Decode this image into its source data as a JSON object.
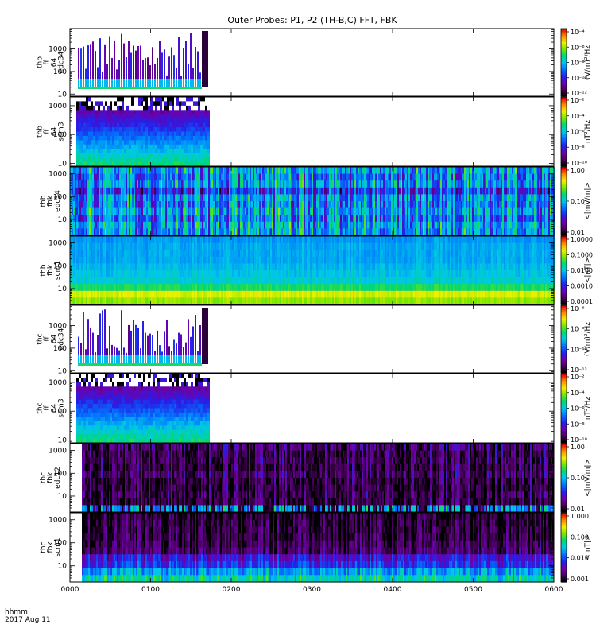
{
  "title": "Outer Probes: P1, P2 (TH-B,C) FFT, FBK",
  "footer": {
    "line1": "hhmm",
    "line2": "2017 Aug 11"
  },
  "x_ticks": [
    "0000",
    "0100",
    "0200",
    "0300",
    "0400",
    "0500",
    "0600"
  ],
  "chart_data": [
    {
      "type": "heatmap",
      "panel": "thb ff 64 edc34",
      "ylabel": [
        "thb",
        "ff",
        "64",
        "edc34"
      ],
      "yscale": "log",
      "ylim": [
        8,
        8000
      ],
      "yticks": [
        "10",
        "100",
        "1000"
      ],
      "data_end_hhmm": "0145",
      "colorbar": {
        "label": "(V/m)²/Hz",
        "scale": "log",
        "ticks": [
          "10⁻⁴",
          "10⁻⁶",
          "10⁻⁸",
          "10⁻¹⁰",
          "10⁻¹²"
        ]
      }
    },
    {
      "type": "heatmap",
      "panel": "thb ff 64 scm3",
      "ylabel": [
        "thb",
        "ff",
        "64",
        "scm3"
      ],
      "yscale": "log",
      "ylim": [
        8,
        2000
      ],
      "yticks": [
        "10",
        "100",
        "1000"
      ],
      "data_end_hhmm": "0145",
      "colorbar": {
        "label": "nT²/Hz",
        "scale": "log",
        "ticks": [
          "10⁻²",
          "10⁻⁴",
          "10⁻⁶",
          "10⁻⁸",
          "10⁻¹⁰"
        ]
      }
    },
    {
      "type": "heatmap",
      "panel": "thb fbk edc34",
      "ylabel": [
        "thb",
        "fbk",
        "edc34"
      ],
      "yscale": "log",
      "ylim": [
        2,
        2000
      ],
      "yticks": [
        "10",
        "100",
        "1000"
      ],
      "colorbar": {
        "label": "<|mV/m|>",
        "scale": "log",
        "ticks": [
          "1.00",
          "0.10",
          "0.01"
        ]
      }
    },
    {
      "type": "heatmap",
      "panel": "thb fbk scm1",
      "ylabel": [
        "thb",
        "fbk",
        "scm1"
      ],
      "yscale": "log",
      "ylim": [
        2,
        2000
      ],
      "yticks": [
        "10",
        "100",
        "1000"
      ],
      "colorbar": {
        "label": "<|nT|>",
        "scale": "log",
        "ticks": [
          "1.0000",
          "0.1000",
          "0.0100",
          "0.0010",
          "0.0001"
        ]
      }
    },
    {
      "type": "heatmap",
      "panel": "thc ff 64 edc34",
      "ylabel": [
        "thc",
        "ff",
        "64",
        "edc34"
      ],
      "yscale": "log",
      "ylim": [
        8,
        8000
      ],
      "yticks": [
        "10",
        "100",
        "1000"
      ],
      "data_end_hhmm": "0145",
      "colorbar": {
        "label": "(V/m)²/Hz",
        "scale": "log",
        "ticks": [
          "10⁻⁶",
          "10⁻⁸",
          "10⁻¹⁰",
          "10⁻¹²"
        ]
      }
    },
    {
      "type": "heatmap",
      "panel": "thc ff 64 scm3",
      "ylabel": [
        "thc",
        "ff",
        "64",
        "scm3"
      ],
      "yscale": "log",
      "ylim": [
        8,
        2000
      ],
      "yticks": [
        "10",
        "100",
        "1000"
      ],
      "data_end_hhmm": "0145",
      "colorbar": {
        "label": "nT²/Hz",
        "scale": "log",
        "ticks": [
          "10⁻²",
          "10⁻⁴",
          "10⁻⁶",
          "10⁻⁸",
          "10⁻¹⁰"
        ]
      }
    },
    {
      "type": "heatmap",
      "panel": "thc fbk edc12",
      "ylabel": [
        "thc",
        "fbk",
        "edc12"
      ],
      "yscale": "log",
      "ylim": [
        2,
        2000
      ],
      "yticks": [
        "10",
        "100",
        "1000"
      ],
      "colorbar": {
        "label": "<|mV/m|>",
        "scale": "log",
        "ticks": [
          "1.00",
          "0.10",
          "0.01"
        ]
      }
    },
    {
      "type": "heatmap",
      "panel": "thc fbk scm1",
      "ylabel": [
        "thc",
        "fbk",
        "scm1"
      ],
      "yscale": "log",
      "ylim": [
        2,
        2000
      ],
      "yticks": [
        "10",
        "100",
        "1000"
      ],
      "colorbar": {
        "label": "<|nT|>",
        "scale": "log",
        "ticks": [
          "1.000",
          "0.100",
          "0.010",
          "0.001"
        ]
      }
    }
  ]
}
